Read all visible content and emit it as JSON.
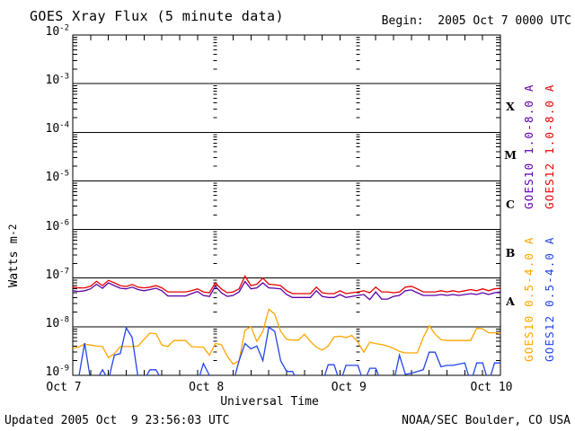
{
  "header": {
    "title": "GOES Xray Flux (5 minute data)",
    "begin": "Begin:  2005 Oct 7 0000 UTC"
  },
  "footer": {
    "updated": "Updated 2005 Oct  9 23:56:03 UTC",
    "source": "NOAA/SEC Boulder, CO USA"
  },
  "legend": {
    "items": [
      {
        "text": "GOES10 1.0-8.0 A",
        "color": "#5c00a8"
      },
      {
        "text": "GOES12 1.0-8.0 A",
        "color": "#e60000"
      },
      {
        "text": "GOES10 0.5-4.0 A",
        "color": "#ffa500"
      },
      {
        "text": "GOES12 0.5-4.0 A",
        "color": "#2244ee"
      }
    ]
  },
  "chart_data": {
    "type": "line",
    "title": "GOES Xray Flux (5 minute data)",
    "xlabel": "Universal Time",
    "ylabel": "Watts m-2",
    "ylabel_base": "Watts m",
    "ylabel_exp": "-2",
    "y_scale": "log",
    "ylim": [
      1e-09,
      0.01
    ],
    "y_tick_exponents": [
      -2,
      -3,
      -4,
      -5,
      -6,
      -7,
      -8,
      -9
    ],
    "x_range_hours": [
      0,
      72
    ],
    "sample_interval_hours": 1,
    "x_ticks": [
      {
        "label": "Oct 7",
        "hour": 0
      },
      {
        "label": "Oct 8",
        "hour": 24
      },
      {
        "label": "Oct 9",
        "hour": 48
      },
      {
        "label": "Oct 10",
        "hour": 72
      }
    ],
    "minor_x_tick_hours": 3,
    "day_boundary_hours": [
      24,
      48
    ],
    "grid": "decade-lines",
    "flare_classes": [
      {
        "label": "X",
        "log_center": -3.5
      },
      {
        "label": "M",
        "log_center": -4.5
      },
      {
        "label": "C",
        "log_center": -5.5
      },
      {
        "label": "B",
        "log_center": -6.5
      },
      {
        "label": "A",
        "log_center": -7.5
      }
    ],
    "series": [
      {
        "name": "GOES10 1.0-8.0 A",
        "color": "#5c00a8",
        "values": [
          5.5e-08,
          5.3e-08,
          5.5e-08,
          6e-08,
          7.5e-08,
          6.2e-08,
          8e-08,
          7e-08,
          6.2e-08,
          6e-08,
          6.5e-08,
          5.8e-08,
          5.5e-08,
          5.8e-08,
          6.2e-08,
          5.5e-08,
          4.3e-08,
          4.3e-08,
          4.3e-08,
          4.3e-08,
          4.8e-08,
          5.3e-08,
          4.4e-08,
          4.2e-08,
          6.8e-08,
          5e-08,
          4.2e-08,
          4.4e-08,
          5.2e-08,
          8.5e-08,
          6e-08,
          6.3e-08,
          8e-08,
          6.3e-08,
          6.2e-08,
          6e-08,
          4.6e-08,
          4e-08,
          4e-08,
          4e-08,
          4e-08,
          5.5e-08,
          4.2e-08,
          4e-08,
          4e-08,
          4.6e-08,
          4e-08,
          4.2e-08,
          4.4e-08,
          4.6e-08,
          3.6e-08,
          5.2e-08,
          3.7e-08,
          3.7e-08,
          4.2e-08,
          4.4e-08,
          5.5e-08,
          5.7e-08,
          5e-08,
          4.4e-08,
          4.4e-08,
          4.4e-08,
          4.6e-08,
          4.4e-08,
          4.6e-08,
          4.4e-08,
          4.6e-08,
          4.8e-08,
          4.6e-08,
          5e-08,
          4.6e-08,
          5e-08,
          5.2e-08
        ]
      },
      {
        "name": "GOES12 1.0-8.0 A",
        "color": "#e60000",
        "values": [
          6.5e-08,
          6.3e-08,
          6.3e-08,
          6.8e-08,
          8.6e-08,
          7e-08,
          9e-08,
          8e-08,
          7e-08,
          6.7e-08,
          7.4e-08,
          6.5e-08,
          6.3e-08,
          6.5e-08,
          7e-08,
          6.3e-08,
          5.2e-08,
          5.2e-08,
          5.2e-08,
          5.2e-08,
          5.5e-08,
          6e-08,
          5.2e-08,
          5e-08,
          8e-08,
          6e-08,
          5e-08,
          5.2e-08,
          6e-08,
          1.1e-07,
          7e-08,
          7.5e-08,
          1e-07,
          7.5e-08,
          7.3e-08,
          7e-08,
          5.5e-08,
          4.8e-08,
          4.8e-08,
          4.8e-08,
          4.8e-08,
          6.5e-08,
          5e-08,
          4.8e-08,
          4.8e-08,
          5.5e-08,
          4.8e-08,
          5e-08,
          5.2e-08,
          5.5e-08,
          5e-08,
          6.5e-08,
          5.2e-08,
          5.2e-08,
          5e-08,
          5.2e-08,
          6.5e-08,
          6.8e-08,
          6e-08,
          5.2e-08,
          5.2e-08,
          5.2e-08,
          5.5e-08,
          5.2e-08,
          5.5e-08,
          5.2e-08,
          5.5e-08,
          5.8e-08,
          5.5e-08,
          6e-08,
          5.5e-08,
          6e-08,
          6.2e-08
        ]
      },
      {
        "name": "GOES10 0.5-4.0 A",
        "color": "#ffa500",
        "values": [
          3.6e-09,
          3.8e-09,
          4.4e-09,
          4.2e-09,
          4e-09,
          3.9e-09,
          2.3e-09,
          2.8e-09,
          3.9e-09,
          3.9e-09,
          3.9e-09,
          4e-09,
          5.5e-09,
          7.4e-09,
          7.2e-09,
          4.2e-09,
          3.9e-09,
          5.2e-09,
          5.2e-09,
          5.2e-09,
          3.9e-09,
          3.8e-09,
          3.8e-09,
          2.6e-09,
          4.5e-09,
          4.3e-09,
          2.5e-09,
          1.7e-09,
          2e-09,
          8.5e-09,
          1e-08,
          5e-09,
          8e-09,
          2.3e-08,
          1.8e-08,
          8e-09,
          5.5e-09,
          5.3e-09,
          5.3e-09,
          7e-09,
          5e-09,
          3.8e-09,
          3.3e-09,
          4e-09,
          6.2e-09,
          6.4e-09,
          6e-09,
          6.6e-09,
          4.8e-09,
          3e-09,
          4.8e-09,
          4.5e-09,
          4.3e-09,
          4e-09,
          3.6e-09,
          3.1e-09,
          2.9e-09,
          2.9e-09,
          2.9e-09,
          6e-09,
          1.05e-08,
          7e-09,
          5.4e-09,
          5.2e-09,
          5.2e-09,
          5.2e-09,
          5.2e-09,
          5.2e-09,
          9.3e-09,
          9e-09,
          7.5e-09,
          7.5e-09,
          7.3e-09
        ]
      },
      {
        "name": "GOES12 0.5-4.0 A",
        "color": "#2244ee",
        "values": [
          9.5e-10,
          9e-10,
          4.6e-09,
          8e-10,
          8e-10,
          1.3e-09,
          8e-10,
          2.6e-09,
          2.8e-09,
          9.5e-09,
          6e-09,
          9e-10,
          8e-10,
          1.3e-09,
          1.3e-09,
          8e-10,
          7e-10,
          7e-10,
          7e-10,
          7e-10,
          7e-10,
          7e-10,
          1.75e-09,
          1e-09,
          8e-10,
          7e-10,
          7e-10,
          7e-10,
          2e-09,
          4.5e-09,
          3.5e-09,
          4e-09,
          2e-09,
          9.8e-09,
          8e-09,
          2e-09,
          1.2e-09,
          1.2e-09,
          7e-10,
          7e-10,
          7e-10,
          7e-10,
          7e-10,
          1.65e-09,
          1.65e-09,
          7e-10,
          1.6e-09,
          1.6e-09,
          1.6e-09,
          7e-10,
          1.4e-09,
          1.4e-09,
          7e-10,
          7e-10,
          7e-10,
          2.6e-09,
          1.05e-09,
          1.1e-09,
          1.2e-09,
          1.3e-09,
          3e-09,
          3e-09,
          1.5e-09,
          1.6e-09,
          1.6e-09,
          1.7e-09,
          1.8e-09,
          7e-10,
          1.8e-09,
          1.8e-09,
          7e-10,
          1.8e-09,
          1.8e-09
        ]
      }
    ]
  }
}
